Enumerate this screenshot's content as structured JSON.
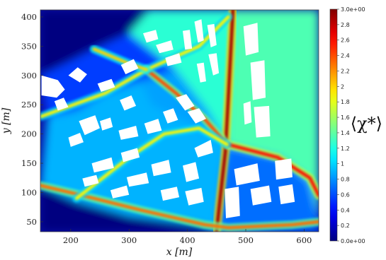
{
  "chart_data": {
    "type": "heatmap",
    "title": "",
    "xlabel": "x [m]",
    "ylabel": "y [m]",
    "xlim": [
      148,
      625
    ],
    "ylim": [
      33,
      412
    ],
    "xticks": [
      "200",
      "300",
      "400",
      "500",
      "600"
    ],
    "xtick_values": [
      200,
      300,
      400,
      500,
      600
    ],
    "yticks": [
      "50",
      "100",
      "150",
      "200",
      "250",
      "300",
      "350",
      "400"
    ],
    "ytick_values": [
      50,
      100,
      150,
      200,
      250,
      300,
      350,
      400
    ],
    "colorbar": {
      "label": "⟨χ*⟩",
      "colormap": "jet",
      "range": [
        0,
        3
      ],
      "ticks": [
        "0.0e+00",
        "0.2",
        "0.4",
        "0.6",
        "0.8",
        "1",
        "1.2",
        "1.4",
        "1.6",
        "1.8",
        "2",
        "2.2",
        "2.4",
        "2.6",
        "2.8",
        "3.0e+00"
      ],
      "tick_values": [
        0,
        0.2,
        0.4,
        0.6,
        0.8,
        1.0,
        1.2,
        1.4,
        1.6,
        1.8,
        2.0,
        2.2,
        2.4,
        2.6,
        2.8,
        3.0
      ]
    },
    "zones": [
      {
        "name": "open-water-northwest",
        "value": 0.0,
        "polygon": [
          [
            148,
            412
          ],
          [
            335,
            412
          ],
          [
            300,
            372
          ],
          [
            240,
            345
          ],
          [
            190,
            320
          ],
          [
            148,
            300
          ]
        ]
      },
      {
        "name": "open-water-southwest",
        "value": 0.0,
        "polygon": [
          [
            148,
            112
          ],
          [
            210,
            85
          ],
          [
            300,
            60
          ],
          [
            420,
            45
          ],
          [
            450,
            33
          ],
          [
            148,
            33
          ]
        ]
      },
      {
        "name": "east-block",
        "value": 1.35,
        "polygon": [
          [
            478,
            412
          ],
          [
            625,
            412
          ],
          [
            625,
            33
          ],
          [
            450,
            33
          ],
          [
            470,
            180
          ],
          [
            475,
            300
          ]
        ]
      },
      {
        "name": "north-central-block",
        "value": 1.25,
        "polygon": [
          [
            335,
            412
          ],
          [
            478,
            412
          ],
          [
            475,
            300
          ],
          [
            470,
            180
          ],
          [
            435,
            240
          ],
          [
            380,
            310
          ],
          [
            300,
            372
          ]
        ]
      },
      {
        "name": "west-triangle",
        "value": 0.55,
        "polygon": [
          [
            148,
            300
          ],
          [
            190,
            320
          ],
          [
            240,
            345
          ],
          [
            300,
            372
          ],
          [
            380,
            310
          ],
          [
            320,
            290
          ],
          [
            260,
            270
          ],
          [
            210,
            240
          ],
          [
            160,
            230
          ]
        ]
      },
      {
        "name": "central-inner-triangle",
        "value": 0.85,
        "polygon": [
          [
            380,
            310
          ],
          [
            435,
            240
          ],
          [
            470,
            180
          ],
          [
            420,
            210
          ],
          [
            340,
            250
          ],
          [
            320,
            290
          ]
        ]
      },
      {
        "name": "south-west-block",
        "value": 0.9,
        "polygon": [
          [
            160,
            230
          ],
          [
            210,
            240
          ],
          [
            260,
            270
          ],
          [
            320,
            290
          ],
          [
            340,
            250
          ],
          [
            420,
            210
          ],
          [
            470,
            180
          ],
          [
            460,
            140
          ],
          [
            450,
            33
          ],
          [
            420,
            45
          ],
          [
            300,
            60
          ],
          [
            210,
            85
          ],
          [
            148,
            112
          ]
        ]
      },
      {
        "name": "south-central-block",
        "value": 0.7,
        "polygon": [
          [
            470,
            180
          ],
          [
            560,
            160
          ],
          [
            610,
            120
          ],
          [
            625,
            60
          ],
          [
            625,
            33
          ],
          [
            450,
            33
          ],
          [
            460,
            140
          ]
        ]
      }
    ],
    "streets": [
      {
        "name": "north-street",
        "value": 2.9,
        "points": [
          [
            478,
            412
          ],
          [
            470,
            260
          ],
          [
            465,
            170
          ],
          [
            455,
            80
          ],
          [
            450,
            33
          ]
        ]
      },
      {
        "name": "diagonal-street-nw-se",
        "value": 2.4,
        "points": [
          [
            330,
            310
          ],
          [
            380,
            270
          ],
          [
            430,
            225
          ],
          [
            468,
            182
          ]
        ]
      },
      {
        "name": "diagonal-street-ne",
        "value": 2.6,
        "points": [
          [
            470,
            182
          ],
          [
            555,
            160
          ],
          [
            610,
            125
          ],
          [
            625,
            95
          ]
        ]
      },
      {
        "name": "south-street",
        "value": 2.3,
        "points": [
          [
            148,
            112
          ],
          [
            220,
            95
          ],
          [
            320,
            70
          ],
          [
            430,
            45
          ],
          [
            470,
            40
          ],
          [
            580,
            45
          ],
          [
            625,
            50
          ]
        ]
      },
      {
        "name": "west-diagonal",
        "value": 1.9,
        "points": [
          [
            150,
            230
          ],
          [
            260,
            270
          ],
          [
            330,
            310
          ],
          [
            420,
            350
          ],
          [
            470,
            400
          ]
        ]
      },
      {
        "name": "mid-street",
        "value": 1.9,
        "points": [
          [
            210,
            90
          ],
          [
            300,
            160
          ],
          [
            360,
            200
          ],
          [
            420,
            210
          ],
          [
            468,
            182
          ]
        ]
      },
      {
        "name": "upper-street",
        "value": 2.0,
        "points": [
          [
            240,
            345
          ],
          [
            300,
            320
          ],
          [
            330,
            310
          ]
        ]
      }
    ],
    "buildings": [
      [
        [
          150,
          300
        ],
        [
          178,
          292
        ],
        [
          190,
          276
        ],
        [
          176,
          262
        ],
        [
          150,
          266
        ]
      ],
      [
        [
          196,
          300
        ],
        [
          212,
          314
        ],
        [
          228,
          302
        ],
        [
          216,
          288
        ]
      ],
      [
        [
          214,
          222
        ],
        [
          242,
          232
        ],
        [
          250,
          210
        ],
        [
          224,
          198
        ]
      ],
      [
        [
          196,
          194
        ],
        [
          216,
          202
        ],
        [
          222,
          186
        ],
        [
          200,
          178
        ]
      ],
      [
        [
          172,
          256
        ],
        [
          188,
          262
        ],
        [
          196,
          246
        ],
        [
          178,
          240
        ]
      ],
      [
        [
          246,
          286
        ],
        [
          270,
          294
        ],
        [
          276,
          280
        ],
        [
          252,
          272
        ]
      ],
      [
        [
          286,
          318
        ],
        [
          308,
          328
        ],
        [
          316,
          312
        ],
        [
          294,
          302
        ]
      ],
      [
        [
          324,
          372
        ],
        [
          346,
          378
        ],
        [
          350,
          362
        ],
        [
          330,
          356
        ]
      ],
      [
        [
          346,
          352
        ],
        [
          372,
          360
        ],
        [
          376,
          344
        ],
        [
          352,
          338
        ]
      ],
      [
        [
          362,
          330
        ],
        [
          386,
          338
        ],
        [
          390,
          322
        ],
        [
          366,
          316
        ]
      ],
      [
        [
          392,
          376
        ],
        [
          404,
          378
        ],
        [
          408,
          346
        ],
        [
          396,
          344
        ]
      ],
      [
        [
          412,
          392
        ],
        [
          424,
          396
        ],
        [
          428,
          360
        ],
        [
          418,
          356
        ]
      ],
      [
        [
          434,
          386
        ],
        [
          446,
          388
        ],
        [
          450,
          352
        ],
        [
          440,
          348
        ]
      ],
      [
        [
          436,
          336
        ],
        [
          450,
          338
        ],
        [
          454,
          304
        ],
        [
          444,
          300
        ]
      ],
      [
        [
          416,
          320
        ],
        [
          428,
          322
        ],
        [
          432,
          290
        ],
        [
          422,
          288
        ]
      ],
      [
        [
          496,
          384
        ],
        [
          520,
          390
        ],
        [
          522,
          340
        ],
        [
          500,
          334
        ]
      ],
      [
        [
          508,
          322
        ],
        [
          532,
          326
        ],
        [
          534,
          262
        ],
        [
          512,
          258
        ]
      ],
      [
        [
          514,
          246
        ],
        [
          540,
          248
        ],
        [
          542,
          196
        ],
        [
          518,
          194
        ]
      ],
      [
        [
          496,
          252
        ],
        [
          508,
          256
        ],
        [
          510,
          220
        ],
        [
          498,
          216
        ]
      ],
      [
        [
          380,
          262
        ],
        [
          398,
          268
        ],
        [
          412,
          248
        ],
        [
          396,
          240
        ]
      ],
      [
        [
          400,
          238
        ],
        [
          420,
          244
        ],
        [
          432,
          226
        ],
        [
          414,
          218
        ]
      ],
      [
        [
          284,
          258
        ],
        [
          304,
          266
        ],
        [
          312,
          248
        ],
        [
          292,
          240
        ]
      ],
      [
        [
          250,
          222
        ],
        [
          268,
          228
        ],
        [
          272,
          212
        ],
        [
          254,
          206
        ]
      ],
      [
        [
          282,
          206
        ],
        [
          312,
          214
        ],
        [
          316,
          196
        ],
        [
          286,
          190
        ]
      ],
      [
        [
          326,
          218
        ],
        [
          350,
          226
        ],
        [
          356,
          206
        ],
        [
          332,
          200
        ]
      ],
      [
        [
          358,
          238
        ],
        [
          376,
          244
        ],
        [
          384,
          224
        ],
        [
          366,
          218
        ]
      ],
      [
        [
          236,
          150
        ],
        [
          270,
          160
        ],
        [
          274,
          142
        ],
        [
          240,
          134
        ]
      ],
      [
        [
          286,
          168
        ],
        [
          314,
          176
        ],
        [
          318,
          160
        ],
        [
          290,
          152
        ]
      ],
      [
        [
          296,
          126
        ],
        [
          330,
          134
        ],
        [
          334,
          116
        ],
        [
          300,
          110
        ]
      ],
      [
        [
          338,
          148
        ],
        [
          368,
          156
        ],
        [
          372,
          134
        ],
        [
          342,
          128
        ]
      ],
      [
        [
          354,
          104
        ],
        [
          382,
          110
        ],
        [
          386,
          92
        ],
        [
          358,
          86
        ]
      ],
      [
        [
          392,
          146
        ],
        [
          414,
          152
        ],
        [
          420,
          124
        ],
        [
          398,
          118
        ]
      ],
      [
        [
          396,
          102
        ],
        [
          424,
          108
        ],
        [
          428,
          84
        ],
        [
          402,
          78
        ]
      ],
      [
        [
          412,
          176
        ],
        [
          440,
          190
        ],
        [
          444,
          168
        ],
        [
          418,
          160
        ]
      ],
      [
        [
          268,
          104
        ],
        [
          296,
          112
        ],
        [
          300,
          96
        ],
        [
          272,
          90
        ]
      ],
      [
        [
          220,
          124
        ],
        [
          244,
          130
        ],
        [
          248,
          116
        ],
        [
          224,
          110
        ]
      ],
      [
        [
          480,
          140
        ],
        [
          520,
          150
        ],
        [
          524,
          120
        ],
        [
          484,
          112
        ]
      ],
      [
        [
          508,
          106
        ],
        [
          540,
          112
        ],
        [
          544,
          84
        ],
        [
          512,
          78
        ]
      ],
      [
        [
          550,
          154
        ],
        [
          578,
          158
        ],
        [
          580,
          126
        ],
        [
          552,
          122
        ]
      ],
      [
        [
          464,
          106
        ],
        [
          488,
          110
        ],
        [
          490,
          60
        ],
        [
          466,
          56
        ]
      ],
      [
        [
          556,
          110
        ],
        [
          580,
          114
        ],
        [
          584,
          84
        ],
        [
          560,
          80
        ]
      ]
    ]
  }
}
